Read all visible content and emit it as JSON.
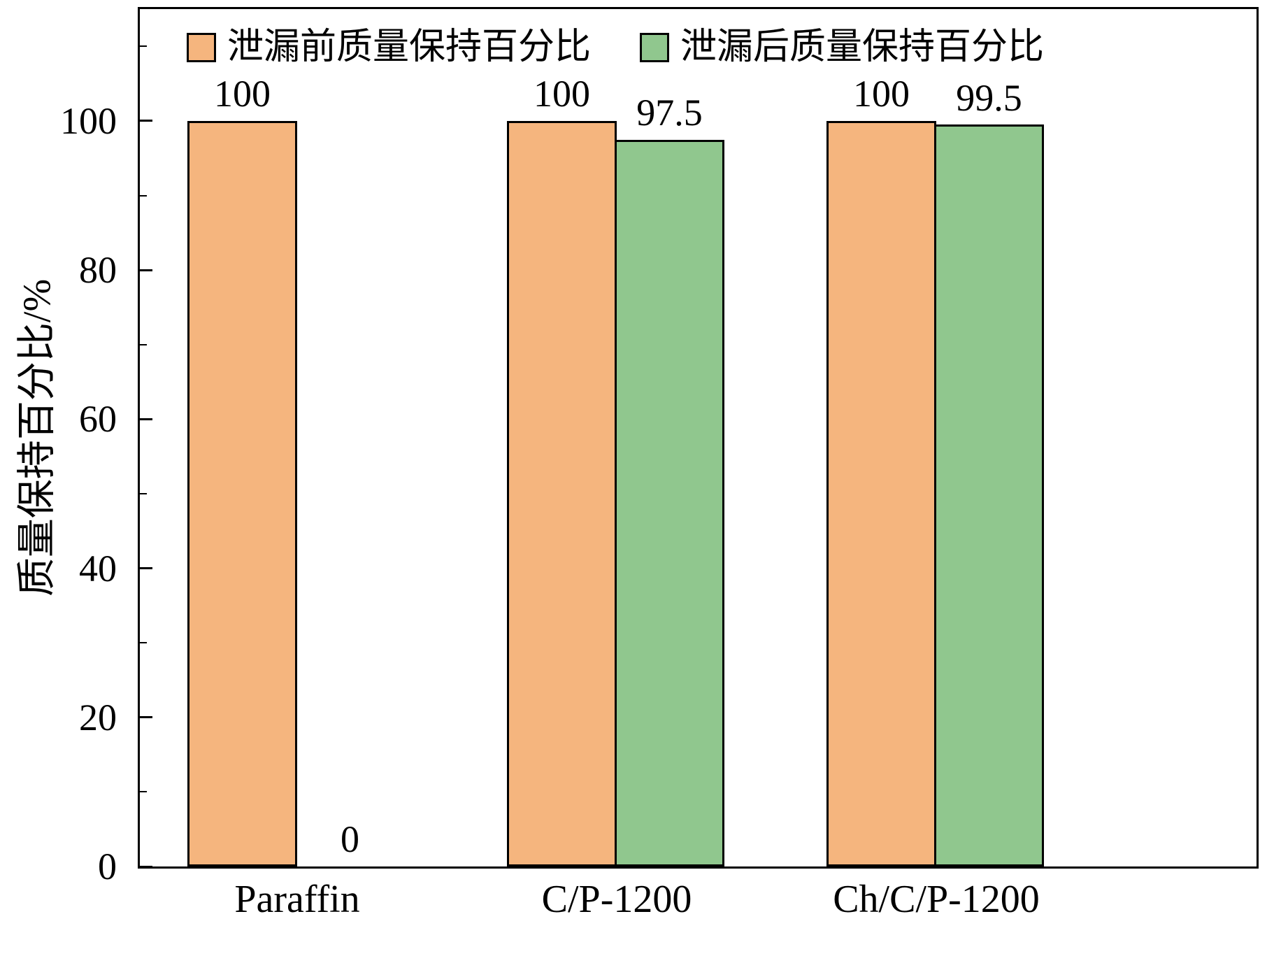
{
  "figure": {
    "background": "#FFFFFF",
    "axis_color": "#000000"
  },
  "chart_data": {
    "type": "bar",
    "title": "",
    "categories": [
      "Paraffin",
      "C/P-1200",
      "Ch/C/P-1200"
    ],
    "series": [
      {
        "name": "泄漏前质量保持百分比",
        "color": "#F5B57E",
        "values": [
          100,
          100,
          100
        ]
      },
      {
        "name": "泄漏后质量保持百分比",
        "color": "#90C78E",
        "values": [
          0,
          97.5,
          99.5
        ]
      }
    ],
    "value_labels": [
      [
        "100",
        "100",
        "100"
      ],
      [
        "0",
        "97.5",
        "99.5"
      ]
    ],
    "xlabel": "",
    "ylabel": "质量保持百分比/%",
    "ylim": [
      0,
      115
    ],
    "yticks": [
      0,
      20,
      40,
      60,
      80,
      100
    ],
    "minor_yticks": [
      10,
      30,
      50,
      70,
      90,
      110
    ],
    "bar_edge_color": "#000000",
    "grid": false,
    "legend_position": "upper-left-inside",
    "value_labels_shown": true
  }
}
